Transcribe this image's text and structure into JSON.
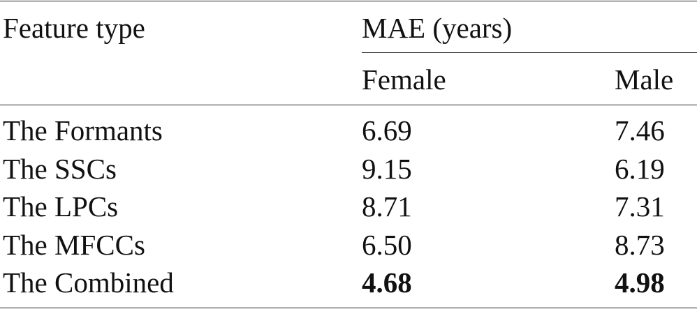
{
  "table": {
    "header": {
      "feature_type": "Feature type",
      "group": "MAE (years)",
      "female": "Female",
      "male": "Male"
    },
    "rows": [
      {
        "feature": "The Formants",
        "female": "6.69",
        "male": "7.46",
        "best": false
      },
      {
        "feature": "The SSCs",
        "female": "9.15",
        "male": "6.19",
        "best": false
      },
      {
        "feature": "The LPCs",
        "female": "8.71",
        "male": "7.31",
        "best": false
      },
      {
        "feature": "The MFCCs",
        "female": "6.50",
        "male": "8.73",
        "best": false
      },
      {
        "feature": "The Combined",
        "female": "4.68",
        "male": "4.98",
        "best": true
      }
    ]
  }
}
